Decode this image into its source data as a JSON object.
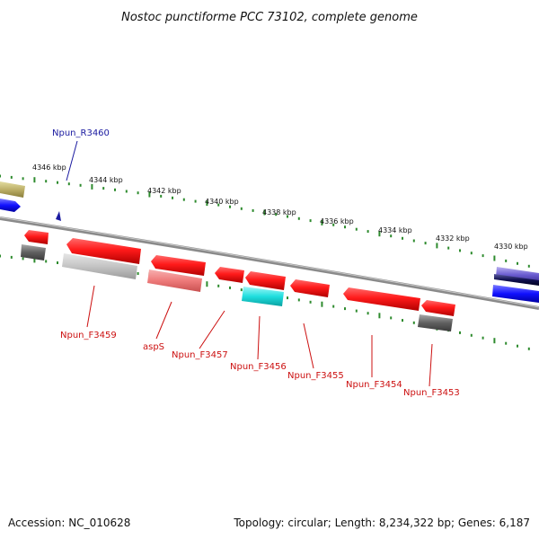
{
  "title": "Nostoc punctiforme PCC 73102, complete genome",
  "footer": {
    "accession": "Accession: NC_010628",
    "summary": "Topology: circular; Length: 8,234,322 bp; Genes: 6,187"
  },
  "colors": {
    "backbone": "#8a8a8a",
    "scale_tick": "#2e8b2e",
    "forward_label": "#1a1aa0",
    "reverse_label": "#cc1010"
  },
  "upper_scale_labels": [
    "4346 kbp",
    "4344 kbp",
    "4342 kbp",
    "4340 kbp",
    "4338 kbp",
    "4336 kbp",
    "4334 kbp",
    "4332 kbp",
    "4330 kbp"
  ],
  "genes": {
    "forward": [
      {
        "label": "Npun_R3460",
        "color": "#1a1aa0"
      }
    ],
    "reverse": [
      {
        "label": "Npun_F3459",
        "color": "#cc1010"
      },
      {
        "label": "aspS",
        "color": "#cc1010"
      },
      {
        "label": "Npun_F3457",
        "color": "#cc1010"
      },
      {
        "label": "Npun_F3456",
        "color": "#cc1010"
      },
      {
        "label": "Npun_F3455",
        "color": "#cc1010"
      },
      {
        "label": "Npun_F3454",
        "color": "#cc1010"
      },
      {
        "label": "Npun_F3453",
        "color": "#cc1010"
      }
    ]
  }
}
